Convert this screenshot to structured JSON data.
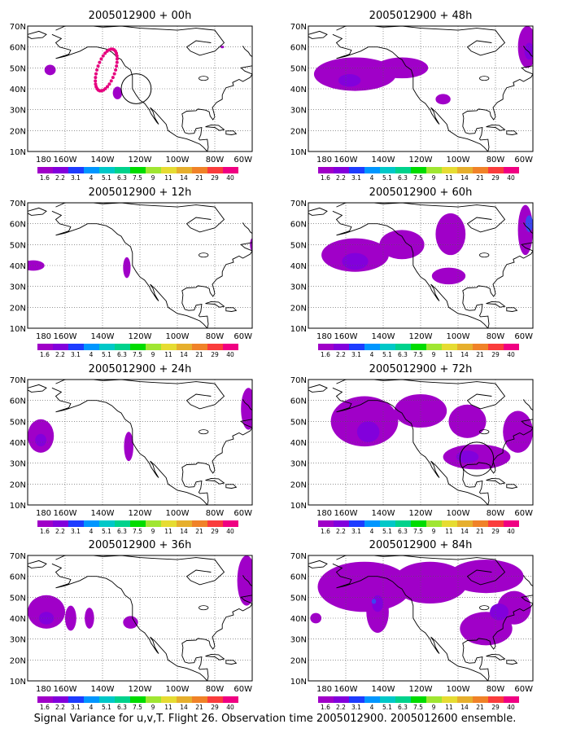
{
  "caption": "Signal Variance for u,v,T. Flight 26. Observation time 2005012900. 2005012600 ensemble.",
  "lat_labels": [
    "10N",
    "20N",
    "30N",
    "40N",
    "50N",
    "60N",
    "70N"
  ],
  "lon_labels": [
    "180",
    "160W",
    "140W",
    "120W",
    "100W",
    "80W",
    "60W"
  ],
  "colorbar": {
    "labels": [
      "1.6",
      "2.2",
      "3.1",
      "4",
      "5.1",
      "6.3",
      "7.5",
      "9",
      "11",
      "14",
      "21",
      "29",
      "40"
    ],
    "colors": [
      "#a000c8",
      "#8200dc",
      "#1e3cff",
      "#0096ff",
      "#00c8c8",
      "#00d28c",
      "#00dc00",
      "#a0e632",
      "#e6dc32",
      "#e6af2d",
      "#f08228",
      "#fa3c3c",
      "#f00082"
    ]
  },
  "fill_colors": {
    "light": "#a000c8",
    "mid": "#8200dc",
    "dark": "#3c46f0",
    "ring": "#e6007e"
  },
  "panels": [
    {
      "title": "2005012900 + 00h",
      "blobs": [
        {
          "lon": -168,
          "lat": 49,
          "rx": 3,
          "ry": 2.5,
          "level": "light"
        },
        {
          "lon": -132,
          "lat": 38,
          "rx": 2.5,
          "ry": 3,
          "level": "light"
        },
        {
          "lon": -76,
          "lat": 60,
          "rx": 1,
          "ry": 0.6,
          "level": "light"
        }
      ],
      "circles": [
        {
          "lon": -122,
          "lat": 40,
          "r": 8
        }
      ],
      "dot_ring": true
    },
    {
      "title": "2005012900 + 48h",
      "blobs": [
        {
          "lon": -155,
          "lat": 47,
          "rx": 22,
          "ry": 8,
          "level": "light"
        },
        {
          "lon": -130,
          "lat": 50,
          "rx": 14,
          "ry": 5,
          "level": "light"
        },
        {
          "lon": -108,
          "lat": 35,
          "rx": 4,
          "ry": 2.5,
          "level": "light"
        },
        {
          "lon": -63,
          "lat": 60,
          "rx": 5,
          "ry": 10,
          "level": "light"
        },
        {
          "lon": -62,
          "lat": 58,
          "rx": 2.5,
          "ry": 4,
          "level": "mid"
        },
        {
          "lon": -158,
          "lat": 44,
          "rx": 6,
          "ry": 3,
          "level": "mid"
        }
      ],
      "circles": []
    },
    {
      "title": "2005012900 + 12h",
      "blobs": [
        {
          "lon": -177,
          "lat": 40,
          "rx": 6,
          "ry": 2.5,
          "level": "light"
        },
        {
          "lon": -127,
          "lat": 39,
          "rx": 2,
          "ry": 5,
          "level": "light"
        },
        {
          "lon": -60,
          "lat": 50,
          "rx": 1.2,
          "ry": 3,
          "level": "light"
        }
      ],
      "circles": []
    },
    {
      "title": "2005012900 + 60h",
      "blobs": [
        {
          "lon": -155,
          "lat": 45,
          "rx": 18,
          "ry": 8,
          "level": "light"
        },
        {
          "lon": -130,
          "lat": 50,
          "rx": 12,
          "ry": 7,
          "level": "light"
        },
        {
          "lon": -104,
          "lat": 55,
          "rx": 8,
          "ry": 10,
          "level": "light"
        },
        {
          "lon": -105,
          "lat": 35,
          "rx": 9,
          "ry": 4,
          "level": "light"
        },
        {
          "lon": -64,
          "lat": 57,
          "rx": 4,
          "ry": 12,
          "level": "light"
        },
        {
          "lon": -155,
          "lat": 42,
          "rx": 7,
          "ry": 4,
          "level": "mid"
        },
        {
          "lon": -62,
          "lat": 60,
          "rx": 2,
          "ry": 4,
          "level": "dark"
        }
      ],
      "circles": []
    },
    {
      "title": "2005012900 + 24h",
      "blobs": [
        {
          "lon": -173,
          "lat": 43,
          "rx": 7,
          "ry": 8,
          "level": "light"
        },
        {
          "lon": -173,
          "lat": 41,
          "rx": 3,
          "ry": 3,
          "level": "mid"
        },
        {
          "lon": -126,
          "lat": 38,
          "rx": 2.5,
          "ry": 7,
          "level": "light"
        },
        {
          "lon": -62,
          "lat": 56,
          "rx": 4,
          "ry": 10,
          "level": "light"
        }
      ],
      "circles": []
    },
    {
      "title": "2005012900 + 72h",
      "blobs": [
        {
          "lon": -150,
          "lat": 50,
          "rx": 18,
          "ry": 12,
          "level": "light"
        },
        {
          "lon": -120,
          "lat": 55,
          "rx": 14,
          "ry": 8,
          "level": "light"
        },
        {
          "lon": -95,
          "lat": 50,
          "rx": 10,
          "ry": 8,
          "level": "light"
        },
        {
          "lon": -90,
          "lat": 33,
          "rx": 18,
          "ry": 6,
          "level": "light"
        },
        {
          "lon": -68,
          "lat": 45,
          "rx": 8,
          "ry": 10,
          "level": "light"
        },
        {
          "lon": -148,
          "lat": 45,
          "rx": 6,
          "ry": 5,
          "level": "mid"
        },
        {
          "lon": -95,
          "lat": 33,
          "rx": 6,
          "ry": 3,
          "level": "mid"
        }
      ],
      "circles": [
        {
          "lon": -90,
          "lat": 32,
          "r": 9
        }
      ]
    },
    {
      "title": "2005012900 + 36h",
      "blobs": [
        {
          "lon": -170,
          "lat": 43,
          "rx": 10,
          "ry": 8,
          "level": "light"
        },
        {
          "lon": -170,
          "lat": 40,
          "rx": 4,
          "ry": 3,
          "level": "mid"
        },
        {
          "lon": -157,
          "lat": 40,
          "rx": 3,
          "ry": 6,
          "level": "light"
        },
        {
          "lon": -147,
          "lat": 40,
          "rx": 2.5,
          "ry": 5,
          "level": "light"
        },
        {
          "lon": -125,
          "lat": 38,
          "rx": 4,
          "ry": 3,
          "level": "light"
        },
        {
          "lon": -63,
          "lat": 58,
          "rx": 5,
          "ry": 12,
          "level": "light"
        }
      ],
      "circles": []
    },
    {
      "title": "2005012900 + 84h",
      "blobs": [
        {
          "lon": -150,
          "lat": 55,
          "rx": 25,
          "ry": 12,
          "level": "light"
        },
        {
          "lon": -115,
          "lat": 57,
          "rx": 20,
          "ry": 10,
          "level": "light"
        },
        {
          "lon": -85,
          "lat": 60,
          "rx": 20,
          "ry": 8,
          "level": "light"
        },
        {
          "lon": -143,
          "lat": 43,
          "rx": 6,
          "ry": 10,
          "level": "light"
        },
        {
          "lon": -85,
          "lat": 35,
          "rx": 14,
          "ry": 8,
          "level": "light"
        },
        {
          "lon": -70,
          "lat": 45,
          "rx": 9,
          "ry": 8,
          "level": "light"
        },
        {
          "lon": -176,
          "lat": 40,
          "rx": 3,
          "ry": 2.5,
          "level": "light"
        },
        {
          "lon": -143,
          "lat": 47,
          "rx": 3,
          "ry": 4,
          "level": "mid"
        },
        {
          "lon": -145,
          "lat": 48,
          "rx": 1.2,
          "ry": 1.2,
          "level": "dark"
        },
        {
          "lon": -78,
          "lat": 43,
          "rx": 5,
          "ry": 4,
          "level": "mid"
        }
      ],
      "circles": []
    }
  ]
}
